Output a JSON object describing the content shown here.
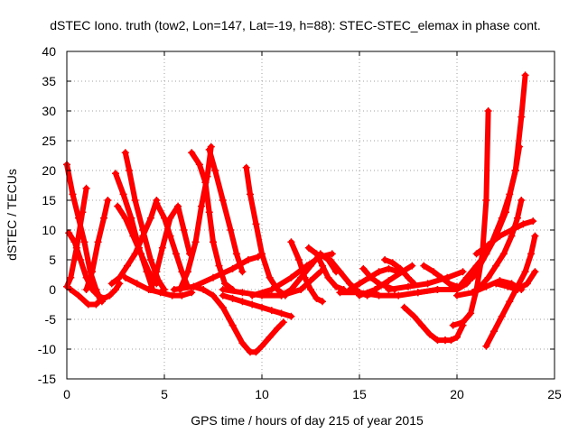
{
  "chart_data": {
    "type": "scatter",
    "title": "dSTEC Iono. truth (tow2, Lon=147, Lat=-19, h=88): STEC-STEC_elemax in phase cont.",
    "xlabel": "GPS time / hours of day 215 of year 2015",
    "ylabel": "dSTEC  / TECUs",
    "xlim": [
      0,
      25
    ],
    "ylim": [
      -15,
      40
    ],
    "xticks": [
      0,
      5,
      10,
      15,
      20,
      25
    ],
    "yticks": [
      -15,
      -10,
      -5,
      0,
      5,
      10,
      15,
      20,
      25,
      30,
      35,
      40
    ],
    "grid": true,
    "marker": "plus",
    "color": "#ff0000",
    "series": [
      {
        "x": [
          0.0,
          0.3,
          0.6,
          0.9,
          1.2,
          1.5,
          1.7,
          1.8
        ],
        "y": [
          21,
          16,
          12,
          8,
          3,
          0,
          -1.5,
          -2
        ]
      },
      {
        "x": [
          0.0,
          0.2,
          0.5,
          0.8,
          1.0
        ],
        "y": [
          0.5,
          2,
          7,
          13,
          17
        ]
      },
      {
        "x": [
          0.1,
          0.4,
          0.7,
          1.0,
          1.3,
          1.6,
          1.9,
          2.2,
          2.5,
          2.7
        ],
        "y": [
          9.5,
          8,
          5,
          2,
          0,
          -1,
          -1.5,
          -1,
          0,
          1
        ]
      },
      {
        "x": [
          0.2,
          0.6,
          1.1,
          1.5,
          1.8
        ],
        "y": [
          0,
          -1,
          -2.5,
          -2.5,
          -1.5
        ]
      },
      {
        "x": [
          1.0,
          1.3,
          1.6,
          1.9,
          2.1
        ],
        "y": [
          0,
          3,
          8,
          12,
          15
        ]
      },
      {
        "x": [
          2.5,
          2.9,
          3.3,
          3.7,
          4.1,
          4.4
        ],
        "y": [
          19.5,
          16,
          12,
          7,
          3,
          0
        ]
      },
      {
        "x": [
          3.0,
          3.2,
          3.5,
          3.9,
          4.3,
          4.7,
          5.0
        ],
        "y": [
          23,
          20,
          15,
          10,
          5,
          1.5,
          0
        ]
      },
      {
        "x": [
          2.3,
          2.7,
          3.1,
          3.5,
          3.9,
          4.3,
          4.6
        ],
        "y": [
          1,
          2,
          4,
          6,
          9,
          12,
          15
        ]
      },
      {
        "x": [
          2.6,
          3.0,
          3.4,
          3.8,
          4.2,
          4.6
        ],
        "y": [
          14,
          12,
          9,
          6,
          3,
          1
        ]
      },
      {
        "x": [
          4.6,
          5.0,
          5.3,
          5.6,
          5.9,
          6.2
        ],
        "y": [
          14.5,
          12,
          9,
          6,
          3,
          0.5
        ]
      },
      {
        "x": [
          4.3,
          4.6,
          4.9,
          5.3,
          5.7,
          6.0,
          6.3
        ],
        "y": [
          0,
          3,
          7,
          12,
          14,
          10,
          6
        ]
      },
      {
        "x": [
          3.0,
          3.6,
          4.2,
          4.8,
          5.4,
          5.9,
          6.4
        ],
        "y": [
          2,
          1,
          0,
          -0.5,
          -1,
          -1,
          -0.5
        ]
      },
      {
        "x": [
          6.4,
          6.8,
          7.1,
          7.3,
          7.5,
          7.8,
          8.1,
          8.5
        ],
        "y": [
          23,
          21,
          18,
          13,
          8,
          4,
          1,
          0
        ]
      },
      {
        "x": [
          5.8,
          6.2,
          6.6,
          6.9,
          7.2,
          7.4
        ],
        "y": [
          0,
          3,
          8,
          14,
          19,
          24
        ]
      },
      {
        "x": [
          7.3,
          7.6,
          8.0,
          8.4,
          8.7,
          9.0
        ],
        "y": [
          23.5,
          20,
          15,
          10,
          6,
          3
        ]
      },
      {
        "x": [
          6.5,
          7.0,
          7.5,
          8.0,
          8.5,
          9.0,
          9.4,
          9.7,
          10.0,
          10.4,
          10.8,
          11.1
        ],
        "y": [
          0.5,
          0,
          -1,
          -3,
          -6,
          -9,
          -10.5,
          -10.5,
          -9.5,
          -8,
          -6.5,
          -5.5
        ]
      },
      {
        "x": [
          9.2,
          9.4,
          9.7,
          10.0,
          10.4,
          10.8,
          11.2
        ],
        "y": [
          20.5,
          16,
          11,
          6,
          2,
          0,
          -1
        ]
      },
      {
        "x": [
          8.0,
          8.5,
          9.0,
          9.5,
          10.0,
          10.5,
          11.0,
          11.5
        ],
        "y": [
          -1,
          -1.5,
          -2,
          -2.5,
          -3,
          -3.5,
          -4,
          -4.5
        ]
      },
      {
        "x": [
          5.5,
          6.5,
          7.5,
          8.5,
          9.3,
          9.8
        ],
        "y": [
          0,
          0.5,
          2,
          3.5,
          5,
          5.5
        ]
      },
      {
        "x": [
          8.0,
          9.0,
          10.0,
          11.0,
          12.0,
          12.5,
          13.0
        ],
        "y": [
          0,
          -0.5,
          -1,
          -1,
          0,
          1.5,
          3
        ]
      },
      {
        "x": [
          11.5,
          11.9,
          12.2,
          12.5,
          12.8,
          13.1
        ],
        "y": [
          8,
          5,
          2,
          0,
          -1.5,
          -2
        ]
      },
      {
        "x": [
          11.0,
          11.5,
          12.0,
          12.5,
          13.0,
          13.4,
          13.8
        ],
        "y": [
          -1,
          0,
          2,
          4,
          6,
          5,
          3
        ]
      },
      {
        "x": [
          12.4,
          12.8,
          13.1,
          13.4,
          13.8,
          14.2
        ],
        "y": [
          7,
          6,
          4,
          2,
          0.5,
          0
        ]
      },
      {
        "x": [
          9.5,
          10.5,
          11.5,
          12.3,
          13.0,
          13.6
        ],
        "y": [
          -1,
          0,
          2,
          4,
          5.5,
          6
        ]
      },
      {
        "x": [
          13.5,
          14.0,
          14.5,
          15.0,
          15.4,
          15.8
        ],
        "y": [
          5,
          3,
          1,
          -0.5,
          -1,
          -0.5
        ]
      },
      {
        "x": [
          14.5,
          15.0,
          15.5,
          16.0,
          16.5,
          17.0
        ],
        "y": [
          0,
          1,
          2,
          3,
          3.5,
          3
        ]
      },
      {
        "x": [
          15.2,
          15.6,
          16.0,
          16.4,
          16.8
        ],
        "y": [
          3.5,
          2,
          1,
          0.5,
          0
        ]
      },
      {
        "x": [
          16.3,
          16.7,
          17.1,
          17.5,
          17.8
        ],
        "y": [
          5,
          4.5,
          3.5,
          2,
          1
        ]
      },
      {
        "x": [
          15.0,
          15.8,
          16.5,
          17.2,
          17.7
        ],
        "y": [
          -1,
          0,
          1.5,
          3,
          4
        ]
      },
      {
        "x": [
          14.0,
          15.0,
          16.0,
          17.0,
          18.0,
          19.0
        ],
        "y": [
          -0.5,
          -0.5,
          -1,
          -1,
          -0.5,
          0
        ]
      },
      {
        "x": [
          17.3,
          17.8,
          18.2,
          18.6,
          19.0,
          19.4
        ],
        "y": [
          -3,
          -4.5,
          -6,
          -7.5,
          -8.5,
          -8.5
        ]
      },
      {
        "x": [
          19.4,
          19.7,
          20.0,
          20.3
        ],
        "y": [
          -8.5,
          -8.5,
          -8,
          -6
        ]
      },
      {
        "x": [
          18.3,
          18.8,
          19.2,
          19.6,
          20.0
        ],
        "y": [
          4,
          3,
          2,
          1,
          0.5
        ]
      },
      {
        "x": [
          16.5,
          17.5,
          18.5,
          19.5,
          20.3
        ],
        "y": [
          0,
          0.5,
          1,
          2,
          3
        ]
      },
      {
        "x": [
          18.0,
          19.0,
          20.0,
          20.5,
          21.0,
          21.5,
          22.0
        ],
        "y": [
          -0.5,
          0,
          0,
          1,
          3,
          6,
          9
        ]
      },
      {
        "x": [
          19.8,
          20.3,
          20.7,
          21.0,
          21.3,
          21.5,
          21.6
        ],
        "y": [
          -6,
          -5.5,
          -4,
          0,
          6,
          15,
          30
        ]
      },
      {
        "x": [
          20.0,
          20.5,
          21.0,
          21.5,
          22.0,
          22.5,
          23.0,
          23.3,
          23.5
        ],
        "y": [
          0,
          2,
          4,
          6,
          9,
          13,
          20,
          29,
          36
        ]
      },
      {
        "x": [
          20.8,
          21.3,
          21.8,
          22.3,
          22.7,
          23.0,
          23.2
        ],
        "y": [
          2,
          5,
          8,
          12,
          16,
          20,
          24
        ]
      },
      {
        "x": [
          20.8,
          21.2,
          21.6,
          22.0,
          22.4,
          22.8,
          23.1,
          23.3
        ],
        "y": [
          -0.5,
          0.5,
          2,
          4,
          6,
          9,
          12,
          15
        ]
      },
      {
        "x": [
          21.0,
          21.6,
          22.2,
          22.8,
          23.4,
          23.9
        ],
        "y": [
          6,
          7.5,
          9,
          10,
          11,
          11.5
        ]
      },
      {
        "x": [
          21.5,
          21.9,
          22.3,
          22.7,
          23.1,
          23.5,
          23.8,
          24.0
        ],
        "y": [
          -9.5,
          -7,
          -4.5,
          -2,
          0.5,
          3,
          6,
          9
        ]
      },
      {
        "x": [
          20.0,
          20.8,
          21.5,
          22.2,
          22.8,
          23.3
        ],
        "y": [
          -1,
          -0.5,
          0.5,
          1.5,
          1,
          0
        ]
      },
      {
        "x": [
          22.0,
          22.6,
          23.1,
          23.6,
          24.0
        ],
        "y": [
          1,
          0.5,
          0,
          1,
          3
        ]
      }
    ]
  }
}
